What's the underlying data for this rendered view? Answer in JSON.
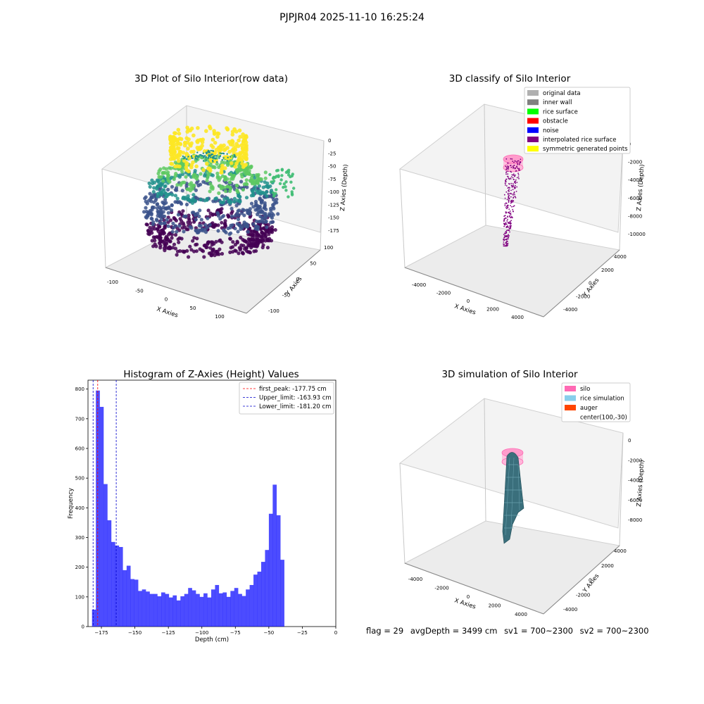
{
  "suptitle": "PJPJR04 2025-11-10 16:25:24",
  "panels": {
    "raw": {
      "title": "3D Plot of Silo Interior(row data)",
      "xlabel": "X Axies",
      "ylabel": "Y Axies",
      "zlabel": "Z Axies (Depth)",
      "xticks": [
        "-100",
        "-50",
        "0",
        "50",
        "100"
      ],
      "yticks": [
        "-100",
        "-50",
        "0",
        "50",
        "100"
      ],
      "zticks": [
        "0",
        "-25",
        "-50",
        "-75",
        "-100",
        "-125",
        "-150",
        "-175"
      ]
    },
    "classify": {
      "title": "3D classify of Silo Interior",
      "xlabel": "X Axies",
      "ylabel": "Y Axies",
      "zlabel": "Z Axies (Depth)",
      "xticks": [
        "-4000",
        "-2000",
        "0",
        "2000",
        "4000"
      ],
      "yticks": [
        "-4000",
        "-2000",
        "0",
        "2000",
        "4000"
      ],
      "zticks": [
        "0",
        "-2000",
        "-4000",
        "-6000",
        "-8000",
        "-10000"
      ],
      "legend": [
        {
          "label": "original data",
          "color": "#b0b0b0"
        },
        {
          "label": "inner wall",
          "color": "#808080"
        },
        {
          "label": "rice surface",
          "color": "#00ff00"
        },
        {
          "label": "obstacle",
          "color": "#ff0000"
        },
        {
          "label": "noise",
          "color": "#0000ff"
        },
        {
          "label": "interpolated rice surface",
          "color": "#800080"
        },
        {
          "label": "symmetric generated points",
          "color": "#ffff00"
        }
      ]
    },
    "simulation": {
      "title": "3D simulation of Silo Interior",
      "xlabel": "X Axies",
      "ylabel": "Y Axies",
      "zlabel": "Z Axies (Depth)",
      "xticks": [
        "-4000",
        "-2000",
        "0",
        "2000",
        "4000"
      ],
      "yticks": [
        "-4000",
        "-2000",
        "0",
        "2000",
        "4000"
      ],
      "zticks": [
        "0",
        "-2000",
        "-4000",
        "-6000",
        "-8000"
      ],
      "legend": [
        {
          "label": "silo",
          "color": "#ff69b4"
        },
        {
          "label": "rice simulation",
          "color": "#87ceeb"
        },
        {
          "label": "auger",
          "color": "#ff4500"
        },
        {
          "label": "center(100,-30)",
          "color": ""
        }
      ]
    }
  },
  "footer": {
    "flag": "flag = 29",
    "avg": "avgDepth = 3499 cm",
    "sv1": "sv1 = 700~2300",
    "sv2": "sv2 = 700~2300"
  },
  "chart_data": [
    {
      "type": "bar",
      "title": "Histogram of Z-Axies (Height) Values",
      "xlabel": "Depth (cm)",
      "ylabel": "Frequency",
      "xlim": [
        -185,
        0
      ],
      "ylim": [
        0,
        830
      ],
      "xticks": [
        -175,
        -150,
        -125,
        -100,
        -75,
        -50,
        -25,
        0
      ],
      "yticks": [
        0,
        100,
        200,
        300,
        400,
        500,
        600,
        700,
        800
      ],
      "bin_start": -182,
      "bin_width": 2.87,
      "color": "#0000ff",
      "values": [
        57,
        795,
        740,
        480,
        358,
        285,
        273,
        268,
        190,
        205,
        160,
        158,
        120,
        125,
        118,
        110,
        110,
        102,
        115,
        110,
        98,
        105,
        88,
        102,
        110,
        130,
        122,
        110,
        100,
        112,
        98,
        125,
        140,
        112,
        115,
        100,
        120,
        130,
        110,
        103,
        125,
        140,
        175,
        185,
        218,
        258,
        380,
        478,
        375,
        225
      ],
      "lines": [
        {
          "label": "first_peak: -177.75 cm",
          "value": -177.75,
          "color": "#ff0000"
        },
        {
          "label": "Upper_limit: -163.93 cm",
          "value": -163.93,
          "color": "#0000cc"
        },
        {
          "label": "Lower_limit: -181.20 cm",
          "value": -181.2,
          "color": "#0000cc"
        }
      ]
    }
  ]
}
